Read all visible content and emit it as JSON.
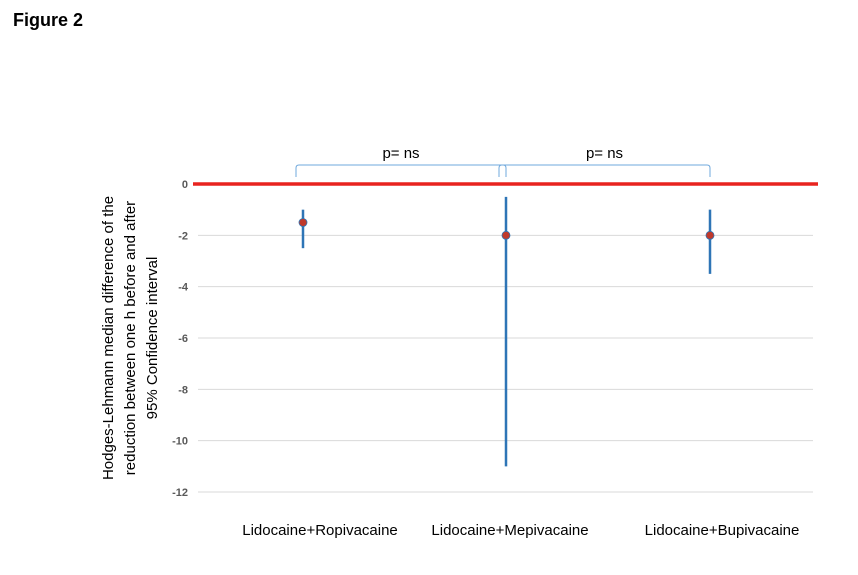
{
  "figure_label": "Figure 2",
  "colors": {
    "zero_line": "#e8231f",
    "error_bar": "#2e75b6",
    "point": "#c0392b",
    "grid": "#d9d9d9",
    "bracket": "#6fa8dc"
  },
  "chart_data": {
    "type": "scatter",
    "title": "",
    "categories": [
      "Lidocaine+Ropivacaine",
      "Lidocaine+Mepivacaine",
      "Lidocaine+Bupivacaine"
    ],
    "values": [
      -1.5,
      -2,
      -2
    ],
    "ci_low": [
      -2.5,
      -11,
      -3.5
    ],
    "ci_high": [
      -1,
      -0.5,
      -1
    ],
    "ylabel": [
      "Hodges-Lehmann median difference of the",
      "reduction between one h before and after",
      "95% Confidence interval"
    ],
    "ylim": [
      -12,
      0
    ],
    "yticks": [
      0,
      -2,
      -4,
      -6,
      -8,
      -10,
      -12
    ],
    "ytick_labels": [
      "0",
      "-2",
      "-4",
      "-6",
      "-8",
      "-10",
      "-12"
    ],
    "reference_line": 0,
    "grid": true,
    "annotations": [
      {
        "text": "p= ns",
        "from": 0,
        "to": 1
      },
      {
        "text": "p= ns",
        "from": 1,
        "to": 2
      }
    ]
  }
}
